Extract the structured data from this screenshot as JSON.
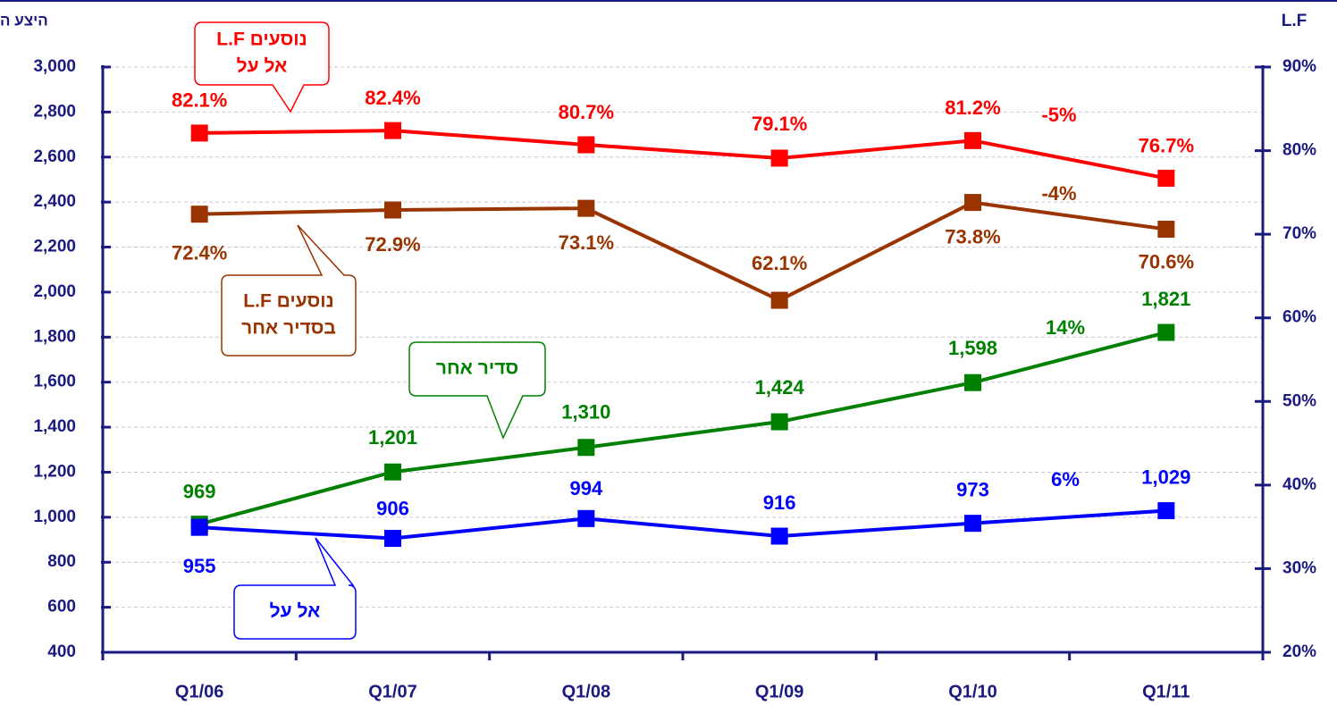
{
  "chart_data": {
    "type": "line",
    "title": "היצע ה",
    "y2_title": "L.F",
    "categories": [
      "Q1/06",
      "Q1/07",
      "Q1/08",
      "Q1/09",
      "Q1/10",
      "Q1/11"
    ],
    "ylim": [
      400,
      3000
    ],
    "yticks": [
      400,
      600,
      800,
      {
        "value": 1000,
        "label": "1,000"
      },
      {
        "value": 1200,
        "label": "1,200"
      },
      {
        "value": 1400,
        "label": "1,400"
      },
      {
        "value": 1600,
        "label": "1,600"
      },
      {
        "value": 1800,
        "label": "1,800"
      },
      {
        "value": 2000,
        "label": "2,000"
      },
      {
        "value": 2200,
        "label": "2,200"
      },
      {
        "value": 2400,
        "label": "2,400"
      },
      {
        "value": 2600,
        "label": "2,600"
      },
      {
        "value": 2800,
        "label": "2,800"
      },
      {
        "value": 3000,
        "label": "3,000"
      }
    ],
    "y2lim": [
      20,
      90
    ],
    "y2ticks": [
      {
        "value": 20,
        "label": "20%"
      },
      {
        "value": 30,
        "label": "30%"
      },
      {
        "value": 40,
        "label": "40%"
      },
      {
        "value": 50,
        "label": "50%"
      },
      {
        "value": 60,
        "label": "60%"
      },
      {
        "value": 70,
        "label": "70%"
      },
      {
        "value": 80,
        "label": "80%"
      },
      {
        "value": 90,
        "label": "90%"
      }
    ],
    "grid": true,
    "series": [
      {
        "name": "L.F נוסעים אל על",
        "color": "#ff0000",
        "axis": "y2",
        "values": [
          82.1,
          82.4,
          80.7,
          79.1,
          81.2,
          76.7
        ],
        "value_labels": [
          "82.1%",
          "82.4%",
          "80.7%",
          "79.1%",
          "81.2%",
          "76.7%"
        ]
      },
      {
        "name": "L.F נוסעים בסדיר אחר",
        "color": "#993300",
        "axis": "y2",
        "values": [
          72.4,
          72.9,
          73.1,
          62.1,
          73.8,
          70.6
        ],
        "value_labels": [
          "72.4%",
          "72.9%",
          "73.1%",
          "62.1%",
          "73.8%",
          "70.6%"
        ]
      },
      {
        "name": "סדיר אחר",
        "color": "#008000",
        "axis": "y",
        "values": [
          969,
          1201,
          1310,
          1424,
          1598,
          1821
        ],
        "value_labels": [
          "969",
          "1,201",
          "1,310",
          "1,424",
          "1,598",
          "1,821"
        ]
      },
      {
        "name": "אל על",
        "color": "#0000ff",
        "axis": "y",
        "values": [
          955,
          906,
          994,
          916,
          973,
          1029
        ],
        "value_labels": [
          "955",
          "906",
          "994",
          "916",
          "973",
          "1,029"
        ]
      }
    ],
    "callouts": [
      {
        "lines": [
          "L.F נוסעים",
          "אל על"
        ]
      },
      {
        "lines": [
          "L.F נוסעים",
          "בסדיר אחר"
        ]
      },
      {
        "lines": [
          "סדיר אחר"
        ]
      },
      {
        "lines": [
          "אל על"
        ]
      }
    ],
    "annotations": [
      {
        "text": "-5%",
        "color": "#ff0000"
      },
      {
        "text": "-4%",
        "color": "#993300"
      },
      {
        "text": "14%",
        "color": "#008000"
      },
      {
        "text": "6%",
        "color": "#0000ff"
      }
    ]
  }
}
